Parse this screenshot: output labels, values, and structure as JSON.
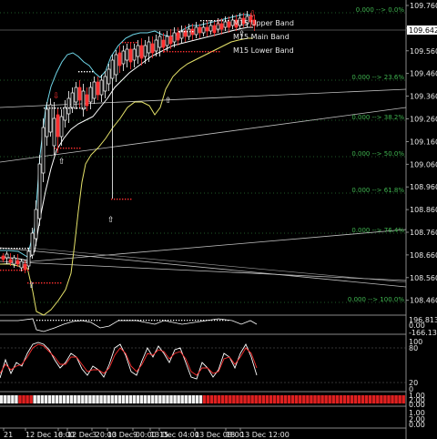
{
  "colors": {
    "background": "#000000",
    "upper_band": "#6fd6e8",
    "main_band": "#ffffff",
    "lower_band": "#e6e36a",
    "bull_candle": "#ffffff",
    "bear_candle": "#ff3030",
    "fib_text": "#3fb34f",
    "stoch_main": "#ffffff",
    "stoch_signal": "#ff3030",
    "heat_red": "#e02020",
    "heat_white": "#f2f2f2"
  },
  "legend": {
    "upper": "M15 Upper Band",
    "main": "M15 Main Band",
    "lower": "M15 Lower Band"
  },
  "price_axis": {
    "ticks": [
      "109.760",
      "109.660",
      "109.560",
      "109.460",
      "109.360",
      "109.260",
      "109.160",
      "109.060",
      "108.960",
      "108.860",
      "108.760",
      "108.660",
      "108.560",
      "108.460"
    ],
    "current_price": "109.642"
  },
  "fibonacci": [
    {
      "label": "0.000 --> 0.0%"
    },
    {
      "label": "0.000 --> 23.6%"
    },
    {
      "label": "0.000 --> 38.2%"
    },
    {
      "label": "0.000 --> 50.0%"
    },
    {
      "label": "0.000 --> 61.8%"
    },
    {
      "label": "0.000 --> 76.4%"
    },
    {
      "label": "0.000 --> 100.0%"
    }
  ],
  "sub1_axis": {
    "top": "196.8133",
    "mid": "0.00",
    "bottom": "-166.1321"
  },
  "stoch_axis": {
    "top": "100",
    "upper": "80",
    "lower": "20",
    "bottom": "0"
  },
  "heat_axis": {
    "a": "1.00",
    "b": "2.00",
    "c": "0.00"
  },
  "bottom_axis": {
    "a": "1.00",
    "b": "2.00",
    "c": "0.00"
  },
  "time_labels": [
    "21",
    "12 Dec 16:00",
    "0",
    "12 Dec 20:00",
    "3",
    "13 Dec 00:00",
    "9",
    "13 Dec 04:00",
    "15",
    "13 Dec 08:00",
    "18",
    "13 Dec 12:00"
  ]
}
